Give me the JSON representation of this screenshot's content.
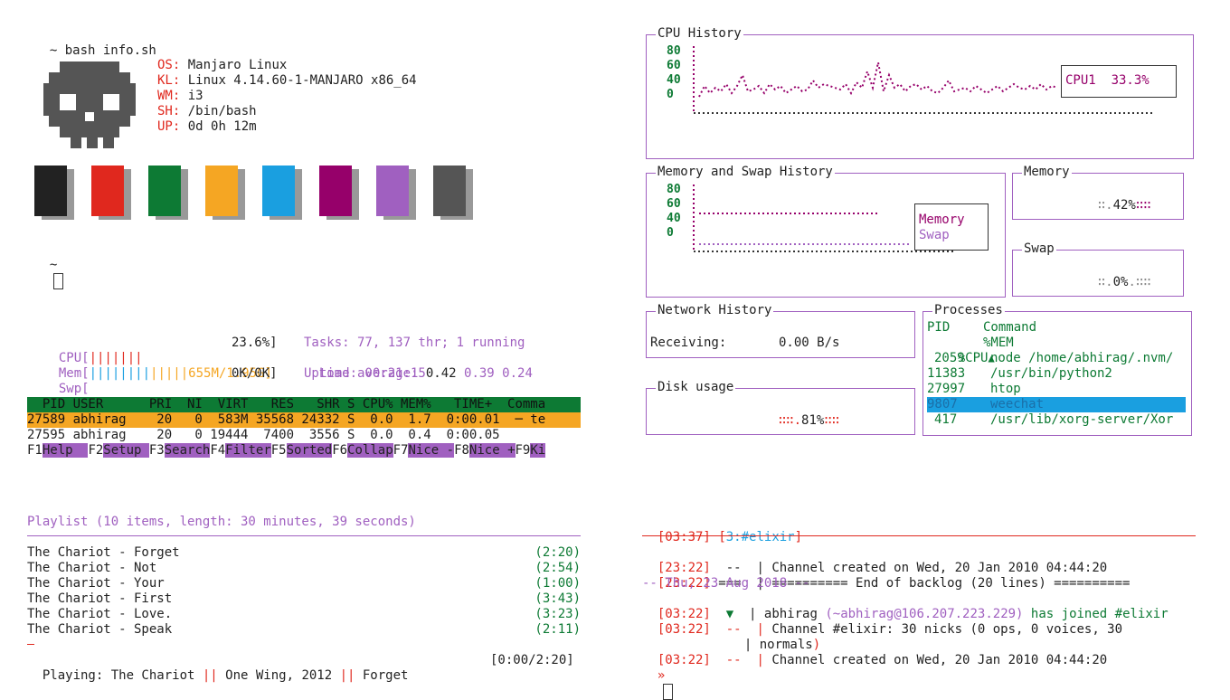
{
  "colors": {
    "accent_purple": "#a060c0",
    "magenta": "#96006a",
    "green": "#0d7a34",
    "red": "#e0281e",
    "orange": "#f5a623",
    "highlight_blue": "#1a9fe0"
  },
  "neofetch": {
    "command": "~ bash info.sh",
    "prompt": "~",
    "info": [
      {
        "key": "OS:",
        "value": " Manjaro Linux"
      },
      {
        "key": "KL:",
        "value": " Linux 4.14.60-1-MANJARO x86_64"
      },
      {
        "key": "WM:",
        "value": " i3"
      },
      {
        "key": "SH:",
        "value": " /bin/bash"
      },
      {
        "key": "UP:",
        "value": " 0d 0h 12m"
      }
    ],
    "palette": [
      "#222222",
      "#e0281e",
      "#0d7a34",
      "#f5a623",
      "#1a9fe0",
      "#96006a",
      "#a060c0",
      "#555555"
    ]
  },
  "htop": {
    "cpu_label": "CPU[",
    "cpu_bars": "|||||||",
    "cpu_value": "23.6%]",
    "mem_label": "Mem[",
    "mem_bars_a": "||||||||",
    "mem_bars_b": "|||||",
    "mem_value": "655M/1.95G]",
    "swp_label": "Swp[",
    "swp_value": "0K/0K]",
    "tasks": "Tasks: 77, 137 thr; 1 running",
    "load_label": "Load average: ",
    "load_1": "0.42",
    "load_5": " 0.39",
    "load_15": " 0.24",
    "uptime": "Uptime: 00:21:15",
    "header": "  PID USER      PRI  NI  VIRT   RES   SHR S CPU% MEM%   TIME+  Comma",
    "rows": [
      "27589 abhirag    20   0  583M 35568 24332 S  0.0  1.7  0:00.01  ─ te",
      "27595 abhirag    20   0 19444  7400  3556 S  0.0  0.4  0:00.05   "
    ],
    "fkeys": [
      {
        "key": "F1",
        "label": "Help  "
      },
      {
        "key": "F2",
        "label": "Setup "
      },
      {
        "key": "F3",
        "label": "Search"
      },
      {
        "key": "F4",
        "label": "Filter"
      },
      {
        "key": "F5",
        "label": "Sorted"
      },
      {
        "key": "F6",
        "label": "Collap"
      },
      {
        "key": "F7",
        "label": "Nice -"
      },
      {
        "key": "F8",
        "label": "Nice +"
      },
      {
        "key": "F9",
        "label": "Ki"
      }
    ]
  },
  "conky": {
    "cpu_history": {
      "title": "CPU History",
      "labels": [
        "80",
        "60",
        "40",
        "0"
      ],
      "legend": "CPU1  33.3%"
    },
    "mem_swap_history": {
      "title": "Memory and Swap History",
      "labels": [
        "80",
        "60",
        "40",
        "0"
      ],
      "legend_memory": "Memory",
      "legend_swap": "Swap"
    },
    "memory": {
      "title": "Memory",
      "value": "42%"
    },
    "swap": {
      "title": "Swap",
      "value": "0%"
    },
    "network": {
      "title": "Network History",
      "label": "Receiving:",
      "value": "0.00 B/s"
    },
    "disk": {
      "title": "Disk usage",
      "value": "81%"
    },
    "processes": {
      "title": "Processes",
      "col_pid": "PID",
      "col_command": "Command",
      "col_cpu": "%CPU",
      "col_mem": "%MEM",
      "rows": [
        {
          "pid": "2059",
          "cmd": "node /home/abhirag/.nvm/"
        },
        {
          "pid": "11383",
          "cmd": "/usr/bin/python2"
        },
        {
          "pid": "27997",
          "cmd": "htop"
        },
        {
          "pid": "9807",
          "cmd": "weechat"
        },
        {
          "pid": "417",
          "cmd": "/usr/lib/xorg-server/Xor"
        }
      ]
    }
  },
  "playlist": {
    "header": "Playlist (10 items, length: 30 minutes, 39 seconds)",
    "items": [
      {
        "title": "The Chariot - Forget",
        "time": "(2:20)"
      },
      {
        "title": "The Chariot - Not",
        "time": "(2:54)"
      },
      {
        "title": "The Chariot - Your",
        "time": "(1:00)"
      },
      {
        "title": "The Chariot - First",
        "time": "(3:43)"
      },
      {
        "title": "The Chariot - Love.",
        "time": "(3:23)"
      },
      {
        "title": "The Chariot - Speak",
        "time": "(2:11)"
      }
    ],
    "now_playing_label": "Playing: The Chariot ",
    "now_playing_album": " One Wing, 2012 ",
    "now_playing_track": " Forget",
    "separator": "||",
    "progress": "[0:00/2:20]"
  },
  "irc": {
    "status_time": "[03:37]",
    "status_channel": "[3:#elixir]",
    "lines": [
      {
        "time": "[23:22]",
        "prefix": "  --  | ",
        "text": "Channel created on Wed, 20 Jan 2010 04:44:20"
      },
      {
        "time": "[23:22]",
        "prefix": " ===  | ",
        "text": "========== End of backlog (20 lines) =========="
      }
    ],
    "day_change": "-- Thu, 23 Aug 2018 --",
    "join_time": "[03:22]",
    "join_arrow": "▼",
    "join_nick": "abhirag",
    "join_host": "(~abhirag@106.207.223.229)",
    "join_text": " has joined #elixir",
    "nicks_time": "[03:22]",
    "nicks_prefix": "  --  | ",
    "nicks_text_1": "Channel #elixir: 30 nicks (",
    "nicks_ops": "0 ops, 0 voices, 30",
    "nicks_text_2": "normals",
    "created_time": "[03:22]",
    "created_prefix": "  --  | ",
    "created_text": "Channel created on Wed, 20 Jan 2010 04:44:20",
    "input_prompt": "»"
  }
}
